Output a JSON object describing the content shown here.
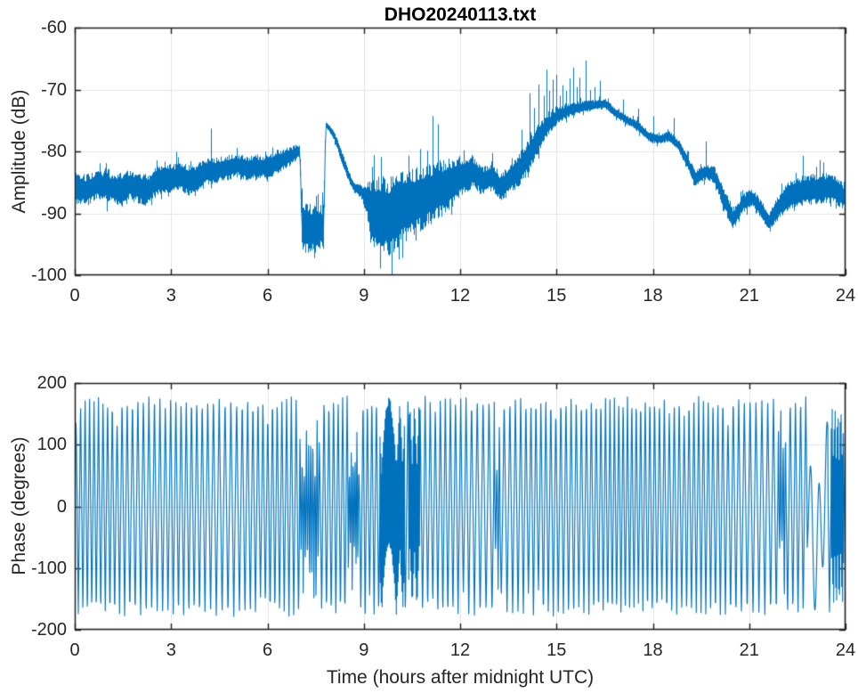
{
  "figure": {
    "title": "DHO20240113.txt",
    "background": "#ffffff"
  },
  "colors": {
    "line": "#0072BD",
    "grid": "#e2e2e2",
    "axis": "#1f1f1f",
    "tick_text": "#262626",
    "title_text": "#000000"
  },
  "chart_data": [
    {
      "id": "amplitude",
      "type": "line",
      "title": "DHO20240113.txt",
      "xlabel": "",
      "ylabel": "Amplitude (dB)",
      "xlim": [
        0,
        24
      ],
      "ylim": [
        -100,
        -60
      ],
      "xticks": [
        0,
        3,
        6,
        9,
        12,
        15,
        18,
        21,
        24
      ],
      "yticks": [
        -100,
        -90,
        -80,
        -70,
        -60
      ],
      "xtick_labels": [
        "0",
        "3",
        "6",
        "9",
        "12",
        "15",
        "18",
        "21",
        "24"
      ],
      "ytick_labels": [
        "-100",
        "-90",
        "-80",
        "-70",
        "-60"
      ],
      "grid": true,
      "legend": null,
      "series": [
        {
          "name": "amplitude_noisy_envelope",
          "style": "noisy-band",
          "t": [
            0.0,
            0.35,
            0.7,
            1.05,
            1.35,
            1.7,
            2.0,
            2.25,
            2.55,
            2.9,
            3.2,
            3.45,
            3.65,
            3.9,
            4.15,
            4.45,
            4.75,
            5.05,
            5.35,
            5.65,
            5.95,
            6.2,
            6.45,
            6.7,
            6.92,
            7.0,
            7.06,
            7.4,
            7.74,
            7.8,
            7.86,
            8.0,
            8.15,
            8.35,
            8.55,
            8.7,
            8.9,
            9.05,
            9.25,
            9.5,
            9.8,
            10.1,
            10.5,
            11.0,
            11.5,
            12.0,
            12.4,
            12.7,
            13.0,
            13.25,
            13.5,
            13.8,
            14.1,
            14.4,
            14.7,
            15.0,
            15.4,
            15.8,
            16.2,
            16.5,
            16.8,
            17.1,
            17.5,
            17.9,
            18.2,
            18.5,
            18.8,
            19.1,
            19.3,
            19.6,
            19.9,
            20.2,
            20.5,
            20.8,
            21.05,
            21.3,
            21.6,
            21.9,
            22.2,
            22.6,
            23.0,
            23.4,
            23.7,
            24.0
          ],
          "center": [
            -86.0,
            -86.3,
            -85.4,
            -85.7,
            -86.1,
            -85.3,
            -85.9,
            -86.2,
            -84.7,
            -84.4,
            -84.1,
            -84.5,
            -84.8,
            -83.7,
            -83.3,
            -83.0,
            -82.6,
            -82.2,
            -82.8,
            -82.5,
            -82.6,
            -82.1,
            -81.4,
            -80.8,
            -80.1,
            -80.0,
            -92.4,
            -92.5,
            -92.2,
            -75.6,
            -75.9,
            -76.8,
            -78.6,
            -81.6,
            -84.4,
            -85.9,
            -86.4,
            -87.6,
            -89.6,
            -91.0,
            -90.4,
            -89.4,
            -88.2,
            -87.0,
            -85.8,
            -84.1,
            -83.3,
            -84.9,
            -83.9,
            -85.9,
            -84.5,
            -83.1,
            -80.9,
            -78.1,
            -75.9,
            -74.3,
            -73.3,
            -72.8,
            -72.5,
            -72.3,
            -73.7,
            -74.7,
            -75.9,
            -77.7,
            -78.0,
            -77.5,
            -79.1,
            -82.1,
            -84.3,
            -83.3,
            -83.7,
            -87.6,
            -90.9,
            -88.4,
            -87.3,
            -88.9,
            -91.3,
            -89.1,
            -87.3,
            -86.4,
            -86.1,
            -85.9,
            -86.3,
            -87.6
          ],
          "halfwidth": [
            2.6,
            2.6,
            2.4,
            2.5,
            2.6,
            2.4,
            2.6,
            2.6,
            2.3,
            2.3,
            2.4,
            2.5,
            2.5,
            2.3,
            2.2,
            2.1,
            2.1,
            2.0,
            2.1,
            2.0,
            2.0,
            1.9,
            1.8,
            1.6,
            1.3,
            1.1,
            4.0,
            4.0,
            3.8,
            0.5,
            0.6,
            0.7,
            0.9,
            1.0,
            1.0,
            0.9,
            1.1,
            2.4,
            5.2,
            7.0,
            6.6,
            6.1,
            5.6,
            5.2,
            4.6,
            3.4,
            2.6,
            2.4,
            2.4,
            2.2,
            2.4,
            2.8,
            2.8,
            2.6,
            1.8,
            1.4,
            1.1,
            1.0,
            0.9,
            0.9,
            0.8,
            0.8,
            0.9,
            0.9,
            0.9,
            0.9,
            1.0,
            1.2,
            1.3,
            1.3,
            1.4,
            1.8,
            1.8,
            1.5,
            1.5,
            1.5,
            1.5,
            2.0,
            2.4,
            2.5,
            2.5,
            2.5,
            2.4,
            2.0
          ],
          "spikes": [
            [
              4.25,
              -76.3
            ],
            [
              9.3,
              -80.6
            ],
            [
              9.52,
              -80.9
            ],
            [
              11.15,
              -74.3
            ],
            [
              11.3,
              -75.6
            ],
            [
              12.1,
              -80.2
            ],
            [
              13.9,
              -76.5
            ],
            [
              14.15,
              -70.6
            ],
            [
              14.3,
              -73.0
            ],
            [
              14.45,
              -69.2
            ],
            [
              14.6,
              -71.0
            ],
            [
              14.68,
              -66.8
            ],
            [
              14.78,
              -70.2
            ],
            [
              14.88,
              -68.4
            ],
            [
              15.0,
              -67.6
            ],
            [
              15.1,
              -71.0
            ],
            [
              15.2,
              -69.3
            ],
            [
              15.3,
              -70.2
            ],
            [
              15.42,
              -68.2
            ],
            [
              15.52,
              -66.5
            ],
            [
              15.62,
              -69.6
            ],
            [
              15.72,
              -68.1
            ],
            [
              15.9,
              -65.3
            ],
            [
              16.05,
              -70.1
            ],
            [
              16.18,
              -69.6
            ],
            [
              16.35,
              -68.6
            ],
            [
              17.08,
              -71.6
            ],
            [
              17.55,
              -73.1
            ],
            [
              18.0,
              -74.3
            ],
            [
              18.65,
              -74.6
            ],
            [
              19.66,
              -78.4
            ],
            [
              22.68,
              -80.7
            ],
            [
              23.2,
              -81.4
            ],
            [
              23.32,
              -81.8
            ]
          ]
        }
      ]
    },
    {
      "id": "phase",
      "type": "line",
      "title": "",
      "xlabel": "Time (hours after midnight UTC)",
      "ylabel": "Phase (degrees)",
      "xlim": [
        0,
        24
      ],
      "ylim": [
        -200,
        200
      ],
      "xticks": [
        0,
        3,
        6,
        9,
        12,
        15,
        18,
        21,
        24
      ],
      "yticks": [
        -200,
        -100,
        0,
        100,
        200
      ],
      "xtick_labels": [
        "0",
        "3",
        "6",
        "9",
        "12",
        "15",
        "18",
        "21",
        "24"
      ],
      "ytick_labels": [
        "-200",
        "-100",
        "0",
        "100",
        "200"
      ],
      "grid": true,
      "legend": null,
      "series": [
        {
          "name": "phase_wrapped",
          "style": "wrapped-sawtooth",
          "wrap_range": [
            -180,
            180
          ],
          "base_cycles_per_hour": 6.4,
          "segments": [
            {
              "t0": 7.0,
              "t1": 7.62,
              "mode": "dense"
            },
            {
              "t0": 8.5,
              "t1": 8.85,
              "mode": "dense"
            },
            {
              "t0": 9.5,
              "t1": 10.28,
              "mode": "solid"
            },
            {
              "t0": 10.4,
              "t1": 10.75,
              "mode": "solid"
            },
            {
              "t0": 13.05,
              "t1": 13.25,
              "mode": "dense"
            },
            {
              "t0": 21.9,
              "t1": 22.15,
              "mode": "dense"
            },
            {
              "t0": 22.8,
              "t1": 23.45,
              "mode": "wander"
            },
            {
              "t0": 23.55,
              "t1": 23.95,
              "mode": "solid"
            }
          ]
        }
      ]
    }
  ]
}
